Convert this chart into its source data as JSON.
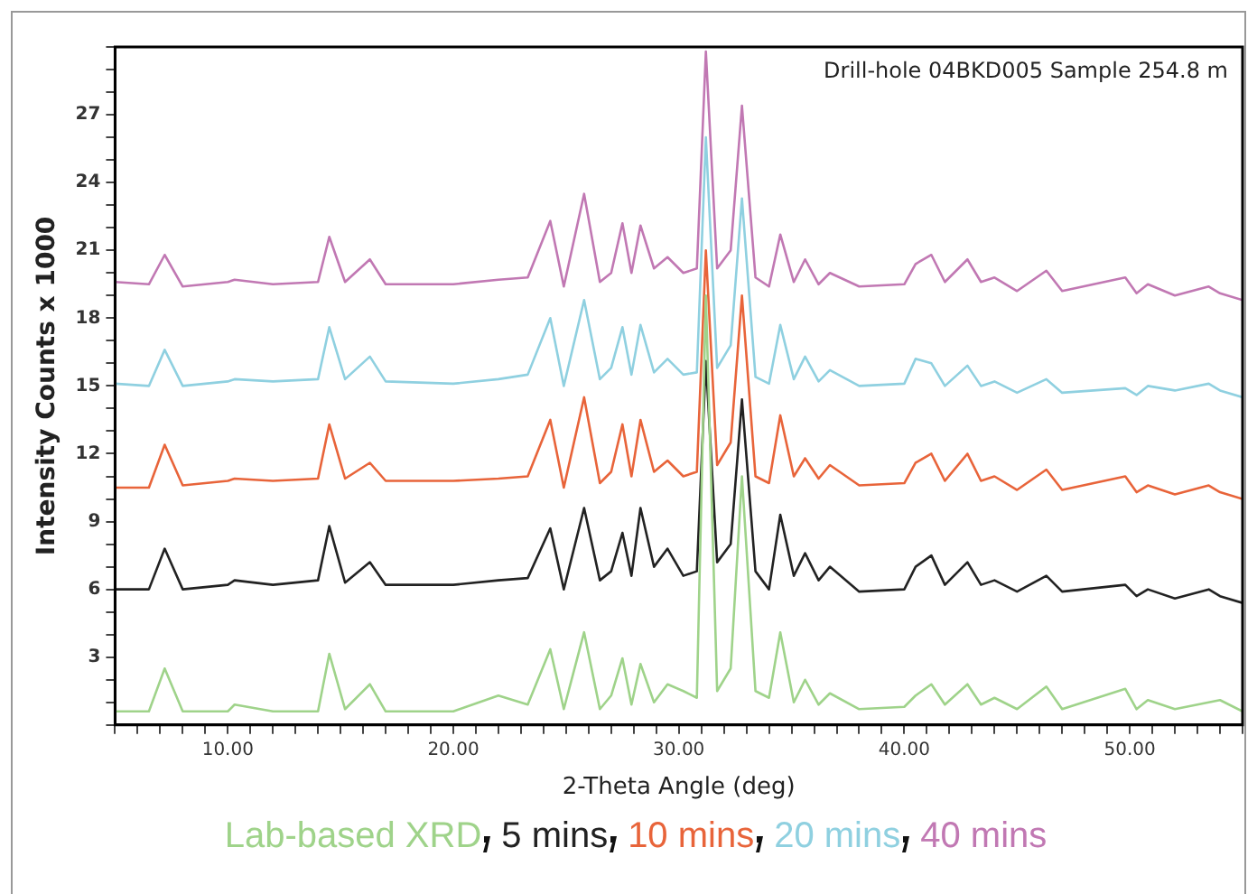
{
  "chart_data": {
    "type": "line",
    "xlabel": "2-Theta Angle (deg)",
    "ylabel": "Intensity Counts x 1000",
    "annotations": [
      "Drill-hole 04BKD005 Sample 254.8 m"
    ],
    "x": [
      5,
      6.5,
      7.2,
      8,
      10,
      10.3,
      12,
      14,
      14.5,
      15.2,
      16.3,
      17,
      20,
      22,
      23.3,
      24.3,
      24.9,
      25.8,
      26.5,
      27,
      27.5,
      27.9,
      28.3,
      28.9,
      29.5,
      30.2,
      30.8,
      31.2,
      31.7,
      32.3,
      32.8,
      33.4,
      34,
      34.5,
      35.1,
      35.6,
      36.2,
      36.7,
      38,
      40,
      40.5,
      41.2,
      41.8,
      42.8,
      43.4,
      44,
      45,
      46.3,
      47,
      49.8,
      50.3,
      50.8,
      52,
      53.5,
      54,
      55
    ],
    "series": [
      {
        "name": "Lab-based XRD",
        "color": "#9fd38a",
        "values": [
          0.6,
          0.6,
          2.5,
          0.6,
          0.6,
          0.9,
          0.6,
          0.6,
          3.15,
          0.7,
          1.8,
          0.6,
          0.6,
          1.3,
          0.9,
          3.35,
          0.7,
          4.1,
          0.7,
          1.3,
          2.95,
          0.9,
          2.7,
          1.0,
          1.8,
          1.5,
          1.2,
          19,
          1.5,
          2.5,
          11,
          1.5,
          1.2,
          4.1,
          1.0,
          2.0,
          0.9,
          1.4,
          0.7,
          0.8,
          1.3,
          1.8,
          0.9,
          1.8,
          0.9,
          1.2,
          0.7,
          1.7,
          0.7,
          1.6,
          0.7,
          1.1,
          0.7,
          1.0,
          1.1,
          0.6
        ]
      },
      {
        "name": "5 mins",
        "color": "#222222",
        "values": [
          6.0,
          6.0,
          7.8,
          6.0,
          6.2,
          6.4,
          6.2,
          6.4,
          8.8,
          6.3,
          7.2,
          6.2,
          6.2,
          6.4,
          6.5,
          8.7,
          6.0,
          9.6,
          6.4,
          6.8,
          8.5,
          6.6,
          9.6,
          7.0,
          7.8,
          6.6,
          6.8,
          16.1,
          7.2,
          8.0,
          14.4,
          6.8,
          6.0,
          9.3,
          6.6,
          7.6,
          6.4,
          7.0,
          5.9,
          6.0,
          7.0,
          7.5,
          6.2,
          7.2,
          6.2,
          6.4,
          5.9,
          6.6,
          5.9,
          6.2,
          5.7,
          6.0,
          5.6,
          6.0,
          5.7,
          5.4
        ]
      },
      {
        "name": "10 mins",
        "color": "#e8643a",
        "values": [
          10.5,
          10.5,
          12.4,
          10.6,
          10.8,
          10.9,
          10.8,
          10.9,
          13.3,
          10.9,
          11.6,
          10.8,
          10.8,
          10.9,
          11.0,
          13.5,
          10.5,
          14.5,
          10.7,
          11.2,
          13.3,
          11.0,
          13.5,
          11.2,
          11.7,
          11.0,
          11.2,
          21.0,
          11.5,
          12.5,
          19.0,
          11.0,
          10.7,
          13.7,
          11.0,
          11.8,
          10.9,
          11.5,
          10.6,
          10.7,
          11.6,
          12.0,
          10.8,
          12.0,
          10.8,
          11.0,
          10.4,
          11.3,
          10.4,
          11.0,
          10.3,
          10.6,
          10.2,
          10.6,
          10.3,
          10.0
        ]
      },
      {
        "name": "20 mins",
        "color": "#8fd0e0",
        "values": [
          15.1,
          15.0,
          16.6,
          15.0,
          15.2,
          15.3,
          15.2,
          15.3,
          17.6,
          15.3,
          16.3,
          15.2,
          15.1,
          15.3,
          15.5,
          18.0,
          15.0,
          18.8,
          15.3,
          15.8,
          17.6,
          15.5,
          17.7,
          15.6,
          16.2,
          15.5,
          15.6,
          26.0,
          15.8,
          16.8,
          23.3,
          15.4,
          15.1,
          17.7,
          15.3,
          16.3,
          15.2,
          15.7,
          15.0,
          15.1,
          16.2,
          16.0,
          15.0,
          15.9,
          15.0,
          15.2,
          14.7,
          15.3,
          14.7,
          14.9,
          14.6,
          15.0,
          14.8,
          15.1,
          14.8,
          14.5
        ]
      },
      {
        "name": "40 mins",
        "color": "#c178b3",
        "values": [
          19.6,
          19.5,
          20.8,
          19.4,
          19.6,
          19.7,
          19.5,
          19.6,
          21.6,
          19.6,
          20.6,
          19.5,
          19.5,
          19.7,
          19.8,
          22.3,
          19.4,
          23.5,
          19.6,
          20.0,
          22.2,
          20.0,
          22.1,
          20.2,
          20.7,
          20.0,
          20.2,
          29.8,
          20.2,
          21.0,
          27.4,
          19.8,
          19.4,
          21.7,
          19.6,
          20.6,
          19.5,
          20.0,
          19.4,
          19.5,
          20.4,
          20.8,
          19.6,
          20.6,
          19.6,
          19.8,
          19.2,
          20.1,
          19.2,
          19.8,
          19.1,
          19.5,
          19.0,
          19.4,
          19.1,
          18.8
        ]
      }
    ],
    "xlim": [
      5,
      55
    ],
    "xticks": [
      {
        "value": 5,
        "label": null
      },
      {
        "value": 6,
        "label": null
      },
      {
        "value": 7,
        "label": null
      },
      {
        "value": 8,
        "label": null
      },
      {
        "value": 9,
        "label": null
      },
      {
        "value": 10,
        "label": "10.00"
      },
      {
        "value": 11,
        "label": null
      },
      {
        "value": 12,
        "label": null
      },
      {
        "value": 13,
        "label": null
      },
      {
        "value": 14,
        "label": null
      },
      {
        "value": 15,
        "label": null
      },
      {
        "value": 16,
        "label": null
      },
      {
        "value": 17,
        "label": null
      },
      {
        "value": 18,
        "label": null
      },
      {
        "value": 19,
        "label": null
      },
      {
        "value": 20,
        "label": "20.00"
      },
      {
        "value": 21,
        "label": null
      },
      {
        "value": 22,
        "label": null
      },
      {
        "value": 23,
        "label": null
      },
      {
        "value": 24,
        "label": null
      },
      {
        "value": 25,
        "label": null
      },
      {
        "value": 26,
        "label": null
      },
      {
        "value": 27,
        "label": null
      },
      {
        "value": 28,
        "label": null
      },
      {
        "value": 29,
        "label": null
      },
      {
        "value": 30,
        "label": "30.00"
      },
      {
        "value": 31,
        "label": null
      },
      {
        "value": 32,
        "label": null
      },
      {
        "value": 33,
        "label": null
      },
      {
        "value": 34,
        "label": null
      },
      {
        "value": 35,
        "label": null
      },
      {
        "value": 36,
        "label": null
      },
      {
        "value": 37,
        "label": null
      },
      {
        "value": 38,
        "label": null
      },
      {
        "value": 39,
        "label": null
      },
      {
        "value": 40,
        "label": "40.00"
      },
      {
        "value": 41,
        "label": null
      },
      {
        "value": 42,
        "label": null
      },
      {
        "value": 43,
        "label": null
      },
      {
        "value": 44,
        "label": null
      },
      {
        "value": 45,
        "label": null
      },
      {
        "value": 46,
        "label": null
      },
      {
        "value": 47,
        "label": null
      },
      {
        "value": 48,
        "label": null
      },
      {
        "value": 49,
        "label": null
      },
      {
        "value": 50,
        "label": "50.00"
      },
      {
        "value": 51,
        "label": null
      },
      {
        "value": 52,
        "label": null
      },
      {
        "value": 53,
        "label": null
      },
      {
        "value": 54,
        "label": null
      },
      {
        "value": 55,
        "label": null
      }
    ],
    "ylim": [
      0,
      30
    ],
    "yticks": [
      {
        "value": 0,
        "label": null
      },
      {
        "value": 1,
        "label": null
      },
      {
        "value": 2,
        "label": null
      },
      3,
      {
        "value": 4,
        "label": null
      },
      {
        "value": 5,
        "label": null
      },
      6,
      {
        "value": 7,
        "label": null
      },
      {
        "value": 8,
        "label": null
      },
      9,
      {
        "value": 10,
        "label": null
      },
      {
        "value": 11,
        "label": null
      },
      12,
      {
        "value": 13,
        "label": null
      },
      {
        "value": 14,
        "label": null
      },
      15,
      {
        "value": 16,
        "label": null
      },
      {
        "value": 17,
        "label": null
      },
      18,
      {
        "value": 19,
        "label": null
      },
      {
        "value": 20,
        "label": null
      },
      21,
      {
        "value": 22,
        "label": null
      },
      {
        "value": 23,
        "label": null
      },
      24,
      {
        "value": 25,
        "label": null
      },
      {
        "value": 26,
        "label": null
      },
      27,
      {
        "value": 28,
        "label": null
      },
      {
        "value": 29,
        "label": null
      },
      {
        "value": 30,
        "label": null
      }
    ],
    "grid": false,
    "legend": "bottom",
    "marker": "none",
    "line_style": "solid"
  }
}
